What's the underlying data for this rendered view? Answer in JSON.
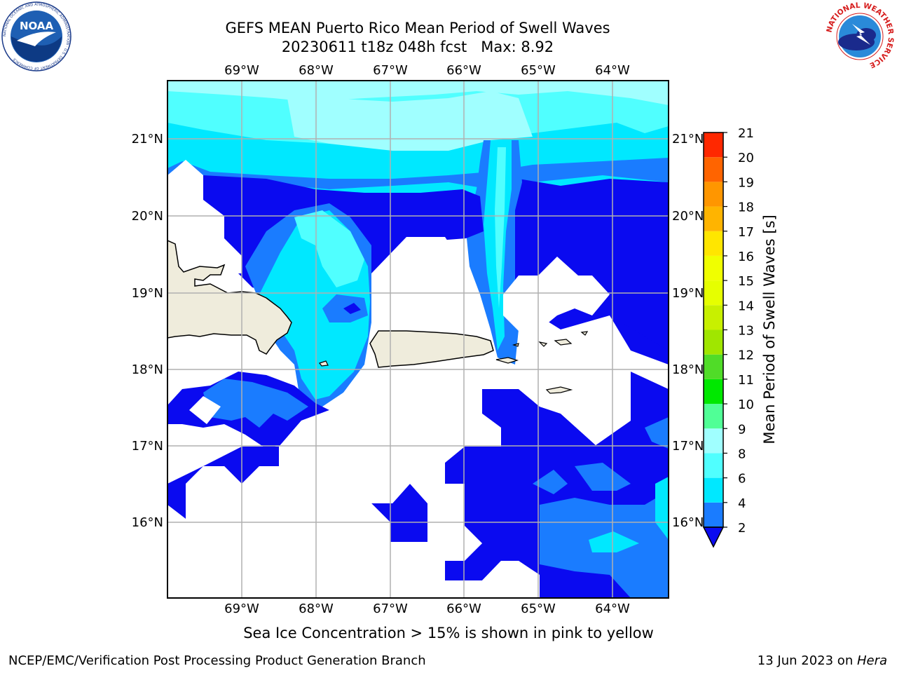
{
  "title": {
    "line1": "GEFS MEAN Puerto Rico Mean Period of Swell Waves",
    "line2": "20230611 t18z 048h fcst   Max: 8.92"
  },
  "logos": {
    "left": {
      "name": "noaa-logo",
      "text": "NOAA",
      "ring_text": "NATIONAL OCEANIC AND ATMOSPHERIC ADMINISTRATION · U.S. DEPARTMENT OF COMMERCE"
    },
    "right": {
      "name": "nws-logo",
      "ring_text": "NATIONAL WEATHER SERVICE"
    }
  },
  "map": {
    "lon_labels": [
      "69°W",
      "68°W",
      "67°W",
      "66°W",
      "65°W",
      "64°W"
    ],
    "lat_labels": [
      "21°N",
      "20°N",
      "19°N",
      "18°N",
      "17°N",
      "16°N"
    ],
    "grid": true,
    "lon_range": [
      -70,
      -63.25
    ],
    "lat_range": [
      15,
      21.75
    ],
    "land_color": "#efecdc",
    "ocean_missing_color": "#ffffff"
  },
  "colorbar": {
    "title": "Mean Period of Swell Waves [s]",
    "ticks": [
      "2",
      "4",
      "6",
      "8",
      "9",
      "10",
      "11",
      "12",
      "13",
      "14",
      "15",
      "16",
      "17",
      "18",
      "19",
      "20",
      "21"
    ],
    "colors": [
      "#1a7cff",
      "#00e8ff",
      "#50ffff",
      "#a0ffff",
      "#50ff96",
      "#00e800",
      "#50dc28",
      "#a0e600",
      "#c8f000",
      "#e6ff00",
      "#f0ff00",
      "#ffe600",
      "#ffb400",
      "#ff9600",
      "#ff6400",
      "#ff2800"
    ],
    "under_color": "#0a0af0"
  },
  "note": "Sea Ice Concentration > 15% is shown in pink to yellow",
  "footer": {
    "left": "NCEP/EMC/Verification Post Processing Product Generation Branch",
    "right_prefix": "13 Jun 2023 on ",
    "right_italic": "Hera"
  }
}
